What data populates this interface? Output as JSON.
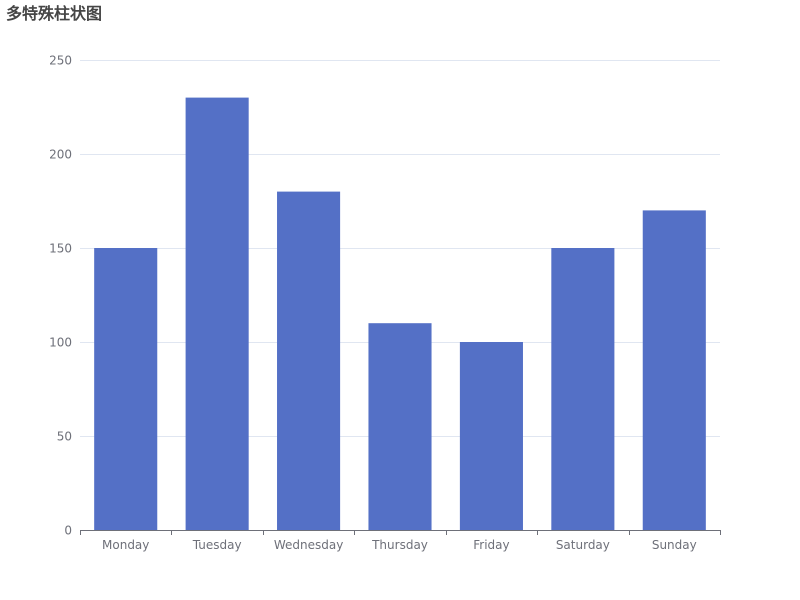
{
  "chart_data": {
    "type": "bar",
    "title": "多特殊柱状图",
    "categories": [
      "Monday",
      "Tuesday",
      "Wednesday",
      "Thursday",
      "Friday",
      "Saturday",
      "Sunday"
    ],
    "values": [
      150,
      230,
      180,
      110,
      100,
      150,
      170
    ],
    "ylim": [
      0,
      250
    ],
    "yticks": [
      0,
      50,
      100,
      150,
      200,
      250
    ],
    "xlabel": "",
    "ylabel": "",
    "grid": true,
    "legend": "none",
    "colors": {
      "bar": "#5470c6",
      "grid": "#e0e6f1",
      "axis": "#6e7079",
      "title": "#464646"
    }
  }
}
